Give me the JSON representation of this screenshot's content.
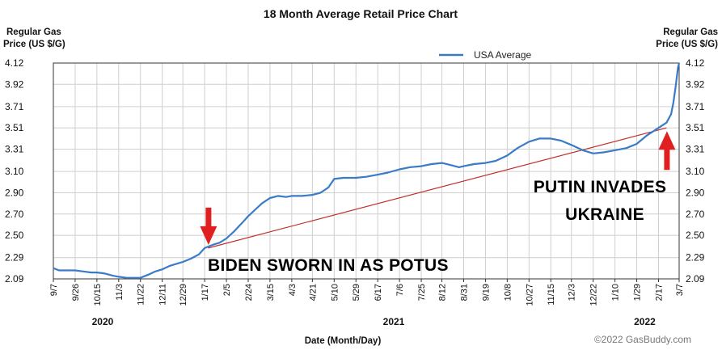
{
  "chart_data": {
    "type": "line",
    "title": "18 Month Average Retail Price Chart",
    "ylabel_left": [
      "Regular Gas",
      "Price (US $/G)"
    ],
    "ylabel_right": [
      "Regular Gas",
      "Price (US $/G)"
    ],
    "xlabel": "Date (Month/Day)",
    "yticks": [
      "4.12",
      "3.92",
      "3.71",
      "3.51",
      "3.31",
      "3.10",
      "2.90",
      "2.70",
      "2.50",
      "2.29",
      "2.09"
    ],
    "ylim": [
      2.09,
      4.12
    ],
    "xlim": [
      "2020-09-07",
      "2022-03-07"
    ],
    "xticks": [
      {
        "label": "9/7",
        "date": "2020-09-07"
      },
      {
        "label": "9/26",
        "date": "2020-09-26"
      },
      {
        "label": "10/15",
        "date": "2020-10-15"
      },
      {
        "label": "11/3",
        "date": "2020-11-03"
      },
      {
        "label": "11/22",
        "date": "2020-11-22"
      },
      {
        "label": "12/11",
        "date": "2020-12-11"
      },
      {
        "label": "12/29",
        "date": "2020-12-29"
      },
      {
        "label": "1/17",
        "date": "2021-01-17"
      },
      {
        "label": "2/5",
        "date": "2021-02-05"
      },
      {
        "label": "2/24",
        "date": "2021-02-24"
      },
      {
        "label": "3/15",
        "date": "2021-03-15"
      },
      {
        "label": "4/3",
        "date": "2021-04-03"
      },
      {
        "label": "4/21",
        "date": "2021-04-21"
      },
      {
        "label": "5/10",
        "date": "2021-05-10"
      },
      {
        "label": "5/29",
        "date": "2021-05-29"
      },
      {
        "label": "6/17",
        "date": "2021-06-17"
      },
      {
        "label": "7/6",
        "date": "2021-07-06"
      },
      {
        "label": "7/25",
        "date": "2021-07-25"
      },
      {
        "label": "8/12",
        "date": "2021-08-12"
      },
      {
        "label": "8/31",
        "date": "2021-08-31"
      },
      {
        "label": "9/19",
        "date": "2021-09-19"
      },
      {
        "label": "10/8",
        "date": "2021-10-08"
      },
      {
        "label": "10/27",
        "date": "2021-10-27"
      },
      {
        "label": "11/15",
        "date": "2021-11-15"
      },
      {
        "label": "12/3",
        "date": "2021-12-03"
      },
      {
        "label": "12/22",
        "date": "2021-12-22"
      },
      {
        "label": "1/10",
        "date": "2022-01-10"
      },
      {
        "label": "1/29",
        "date": "2022-01-29"
      },
      {
        "label": "2/17",
        "date": "2022-02-17"
      },
      {
        "label": "3/7",
        "date": "2022-03-07"
      }
    ],
    "years": [
      {
        "label": "2020",
        "date": "2020-10-20"
      },
      {
        "label": "2021",
        "date": "2021-07-01"
      },
      {
        "label": "2022",
        "date": "2022-02-05"
      }
    ],
    "grid": true,
    "legend": {
      "position": "top-center",
      "entries": [
        {
          "name": "USA Average",
          "color": "#3a7bc8"
        }
      ]
    },
    "series": [
      {
        "name": "USA Average",
        "color": "#3a7bc8",
        "points": [
          [
            "2020-09-07",
            2.19
          ],
          [
            "2020-09-12",
            2.17
          ],
          [
            "2020-09-18",
            2.17
          ],
          [
            "2020-09-26",
            2.17
          ],
          [
            "2020-10-03",
            2.16
          ],
          [
            "2020-10-10",
            2.15
          ],
          [
            "2020-10-15",
            2.15
          ],
          [
            "2020-10-22",
            2.14
          ],
          [
            "2020-10-29",
            2.12
          ],
          [
            "2020-11-03",
            2.11
          ],
          [
            "2020-11-10",
            2.1
          ],
          [
            "2020-11-17",
            2.1
          ],
          [
            "2020-11-22",
            2.1
          ],
          [
            "2020-11-29",
            2.13
          ],
          [
            "2020-12-05",
            2.16
          ],
          [
            "2020-12-11",
            2.18
          ],
          [
            "2020-12-17",
            2.21
          ],
          [
            "2020-12-23",
            2.23
          ],
          [
            "2020-12-29",
            2.25
          ],
          [
            "2021-01-05",
            2.28
          ],
          [
            "2021-01-12",
            2.32
          ],
          [
            "2021-01-17",
            2.38
          ],
          [
            "2021-01-24",
            2.41
          ],
          [
            "2021-01-30",
            2.43
          ],
          [
            "2021-02-05",
            2.47
          ],
          [
            "2021-02-12",
            2.54
          ],
          [
            "2021-02-19",
            2.62
          ],
          [
            "2021-02-24",
            2.68
          ],
          [
            "2021-03-02",
            2.74
          ],
          [
            "2021-03-08",
            2.8
          ],
          [
            "2021-03-15",
            2.85
          ],
          [
            "2021-03-22",
            2.87
          ],
          [
            "2021-03-29",
            2.86
          ],
          [
            "2021-04-03",
            2.87
          ],
          [
            "2021-04-12",
            2.87
          ],
          [
            "2021-04-21",
            2.88
          ],
          [
            "2021-04-28",
            2.9
          ],
          [
            "2021-05-05",
            2.95
          ],
          [
            "2021-05-10",
            3.03
          ],
          [
            "2021-05-18",
            3.04
          ],
          [
            "2021-05-29",
            3.04
          ],
          [
            "2021-06-07",
            3.05
          ],
          [
            "2021-06-17",
            3.07
          ],
          [
            "2021-06-26",
            3.09
          ],
          [
            "2021-07-06",
            3.12
          ],
          [
            "2021-07-15",
            3.14
          ],
          [
            "2021-07-25",
            3.15
          ],
          [
            "2021-08-03",
            3.17
          ],
          [
            "2021-08-12",
            3.18
          ],
          [
            "2021-08-20",
            3.16
          ],
          [
            "2021-08-27",
            3.14
          ],
          [
            "2021-08-31",
            3.15
          ],
          [
            "2021-09-09",
            3.17
          ],
          [
            "2021-09-19",
            3.18
          ],
          [
            "2021-09-28",
            3.2
          ],
          [
            "2021-10-08",
            3.25
          ],
          [
            "2021-10-17",
            3.32
          ],
          [
            "2021-10-27",
            3.38
          ],
          [
            "2021-11-05",
            3.41
          ],
          [
            "2021-11-15",
            3.41
          ],
          [
            "2021-11-24",
            3.39
          ],
          [
            "2021-12-03",
            3.35
          ],
          [
            "2021-12-13",
            3.3
          ],
          [
            "2021-12-22",
            3.27
          ],
          [
            "2021-12-31",
            3.28
          ],
          [
            "2022-01-10",
            3.3
          ],
          [
            "2022-01-20",
            3.32
          ],
          [
            "2022-01-29",
            3.36
          ],
          [
            "2022-02-07",
            3.44
          ],
          [
            "2022-02-17",
            3.51
          ],
          [
            "2022-02-24",
            3.56
          ],
          [
            "2022-02-28",
            3.64
          ],
          [
            "2022-03-02",
            3.75
          ],
          [
            "2022-03-04",
            3.9
          ],
          [
            "2022-03-06",
            4.08
          ],
          [
            "2022-03-07",
            4.12
          ]
        ]
      }
    ],
    "annotations": [
      {
        "text": "BIDEN SWORN IN AS POTUS",
        "date": "2021-01-20",
        "value": 2.38,
        "arrow_color": "#e02020"
      },
      {
        "text_lines": [
          "PUTIN INVADES",
          "UKRAINE"
        ],
        "date": "2022-02-24",
        "value": 3.51,
        "arrow_color": "#e02020"
      }
    ],
    "trend_line": {
      "from": [
        "2021-01-20",
        2.38
      ],
      "to": [
        "2022-02-24",
        3.51
      ],
      "color": "#c0312b"
    },
    "credit": "©2022 GasBuddy.com"
  }
}
